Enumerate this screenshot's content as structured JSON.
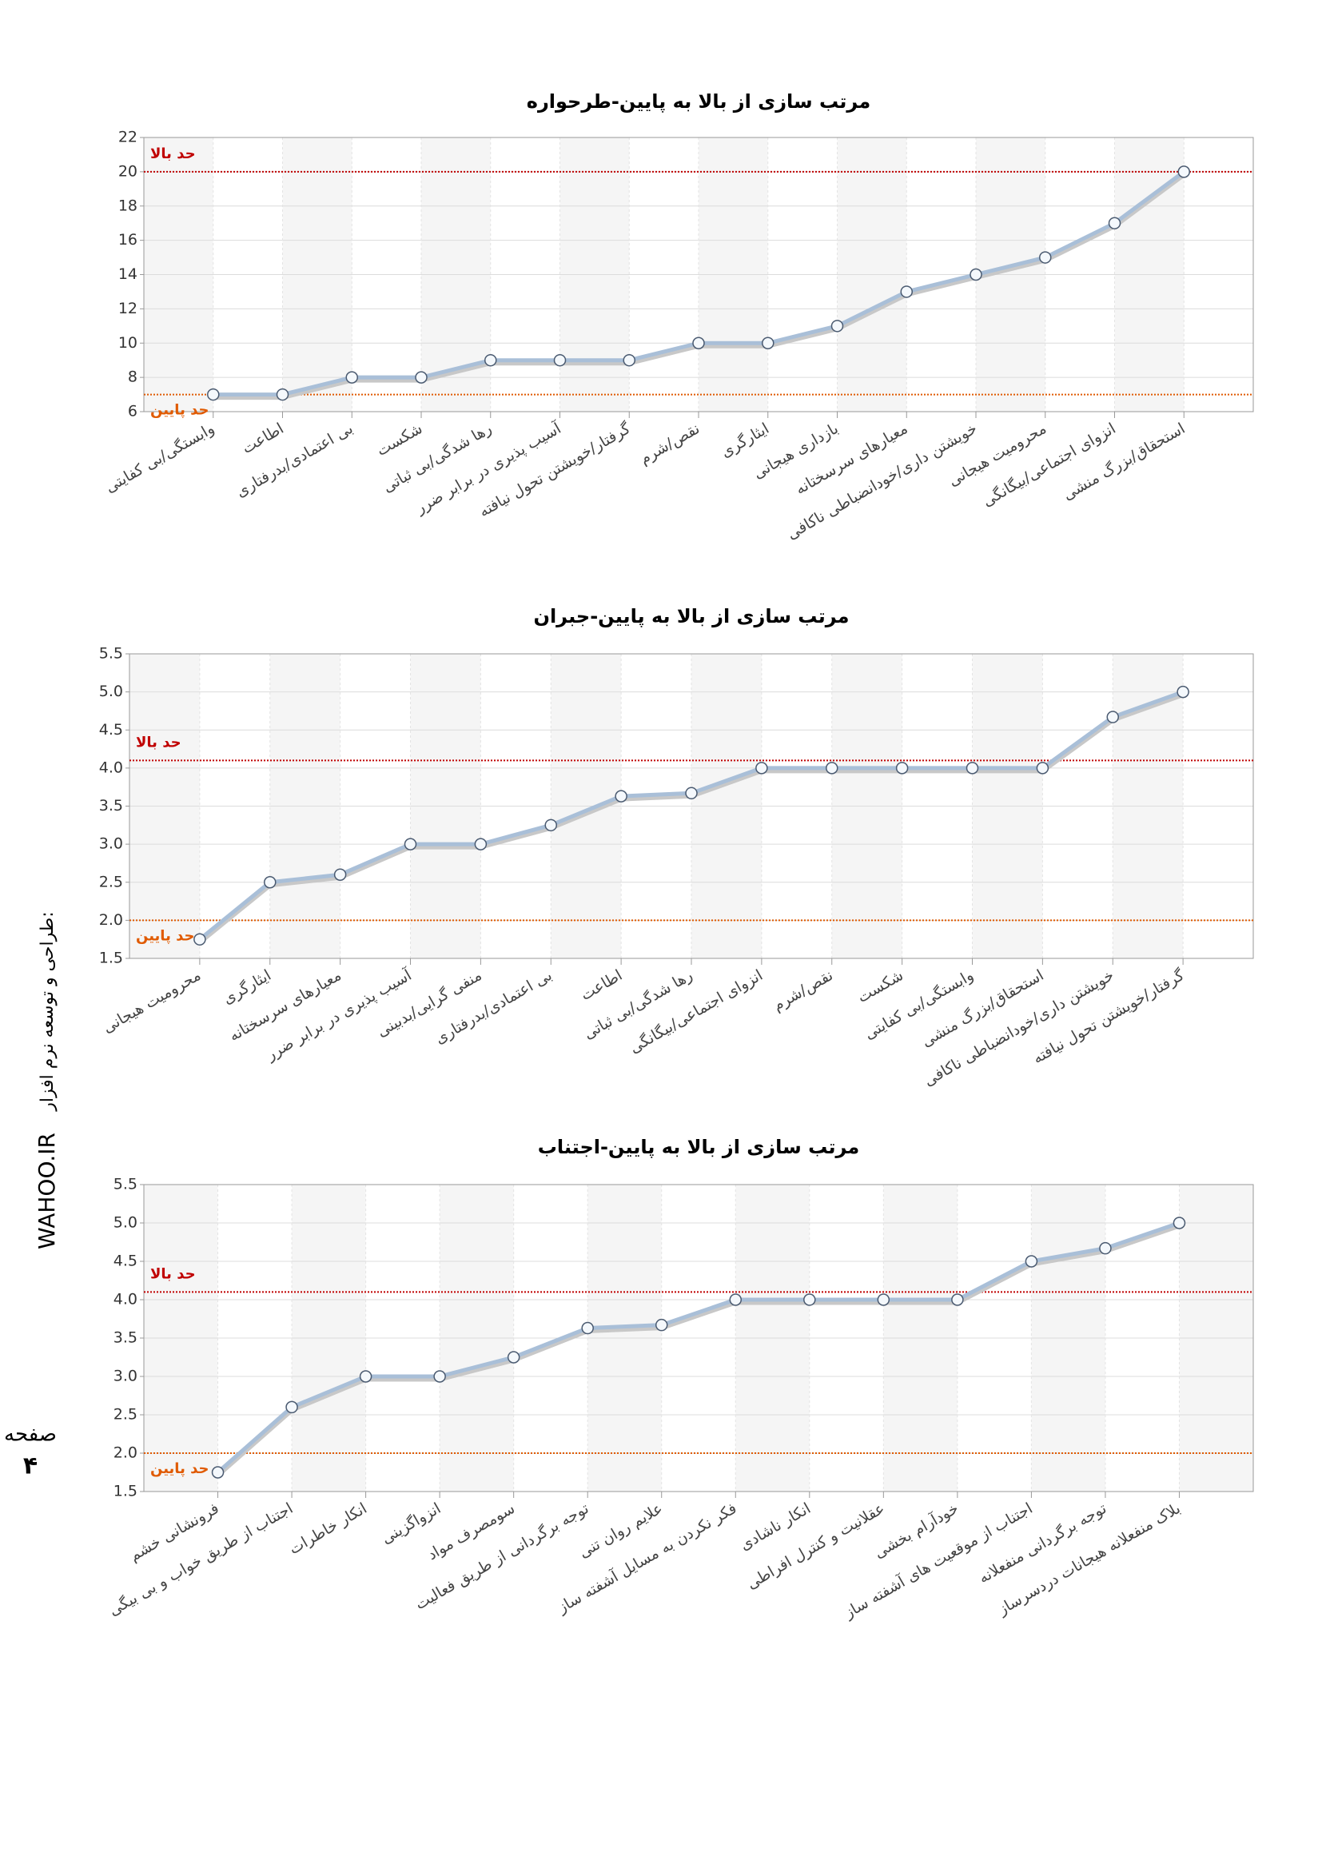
{
  "chart_data": [
    {
      "type": "line",
      "title": "مرتب سازی از بالا به پایین-طرحواره",
      "categories": [
        "وابستگی/بی کفایتی",
        "اطاعت",
        "بی اعتمادی/بدرفتاری",
        "شکست",
        "رها شدگی/بی ثباتی",
        "آسیب پذیری در برابر ضرر",
        "گرفتار/خویشتن تحول نیافته",
        "نقص/شرم",
        "ایثارگری",
        "بازداری هیجانی",
        "معیارهای سرسختانه",
        "خویشتن داری/خودانضباطی ناکافی",
        "محرومیت هیجانی",
        "انزوای اجتماعی/بیگانگی",
        "استحقاق/بزرگ منشی"
      ],
      "values": [
        7,
        7,
        8,
        8,
        9,
        9,
        9,
        10,
        10,
        11,
        13,
        14,
        15,
        17,
        20
      ],
      "color": "#a9bfd8",
      "ylim": [
        6,
        22
      ],
      "yticks": [
        6,
        8,
        10,
        12,
        14,
        16,
        18,
        20,
        22
      ],
      "grid": true,
      "reference_lines": [
        {
          "label": "حد بالا",
          "value": 20,
          "color": "#c00000"
        },
        {
          "label": "حد پایین",
          "value": 7,
          "color": "#e05a00"
        }
      ]
    },
    {
      "type": "line",
      "title": "مرتب سازی از بالا به پایین-جبران",
      "categories": [
        "محرومیت هیجانی",
        "ایثارگری",
        "معیارهای سرسختانه",
        "آسیب پذیری در برابر ضرر",
        "منفی گرایی/بدبینی",
        "بی اعتمادی/بدرفتاری",
        "اطاعت",
        "رها شدگی/بی ثباتی",
        "انزوای اجتماعی/بیگانگی",
        "نقص/شرم",
        "شکست",
        "وابستگی/بی کفایتی",
        "استحقاق/بزرگ منشی",
        "خویشتن داری/خودانضباطی ناکافی",
        "گرفتار/خویشتن تحول نیافته"
      ],
      "values": [
        1.75,
        2.5,
        2.6,
        3,
        3,
        3.25,
        3.63,
        3.67,
        4,
        4,
        4,
        4,
        4,
        4.67,
        5
      ],
      "color": "#a9bfd8",
      "ylim": [
        1.5,
        5.5
      ],
      "yticks": [
        1.5,
        {
          "value": 2,
          "label": "2.0"
        },
        2.5,
        {
          "value": 3,
          "label": "3.0"
        },
        3.5,
        {
          "value": 4,
          "label": "4.0"
        },
        4.5,
        {
          "value": 5,
          "label": "5.0"
        },
        5.5
      ],
      "grid": true,
      "reference_lines": [
        {
          "label": "حد بالا",
          "value": 4.1,
          "color": "#c00000"
        },
        {
          "label": "حد پایین",
          "value": 2,
          "color": "#e05a00"
        }
      ]
    },
    {
      "type": "line",
      "title": "مرتب سازی از بالا به پایین-اجتناب",
      "categories": [
        "فرونشانی خشم",
        "اجتناب از طریق خواب و بی بیگی",
        "انکار خاطرات",
        "انزواگزینی",
        "سومصرف مواد",
        "توجه برگردانی از طریق فعالیت",
        "علایم روان تنی",
        "فکر نکردن به مسایل آشفته ساز",
        "انکار ناشادی",
        "عقلانیت و کنترل افراطی",
        "خودآرام بخشی",
        "اجتناب از موقعیت های آشفته ساز",
        "توجه برگردانی منفعلانه",
        "بلاک منفعلانه هیجانات دردسرساز"
      ],
      "values": [
        1.75,
        2.6,
        3,
        3,
        3.25,
        3.63,
        3.67,
        4,
        4,
        4,
        4,
        4.5,
        4.67,
        5
      ],
      "color": "#a9bfd8",
      "ylim": [
        1.5,
        5.5
      ],
      "yticks": [
        1.5,
        {
          "value": 2,
          "label": "2.0"
        },
        2.5,
        {
          "value": 3,
          "label": "3.0"
        },
        3.5,
        {
          "value": 4,
          "label": "4.0"
        },
        4.5,
        {
          "value": 5,
          "label": "5.0"
        },
        5.5
      ],
      "grid": true,
      "reference_lines": [
        {
          "label": "حد بالا",
          "value": 4.1,
          "color": "#c00000"
        },
        {
          "label": "حد پایین",
          "value": 2,
          "color": "#e05a00"
        }
      ]
    }
  ],
  "side": {
    "credit": "طراحی و توسعه نرم افزار:",
    "site": "WAHOO.IR",
    "page_word": "صفحه",
    "page_number": "۴"
  }
}
